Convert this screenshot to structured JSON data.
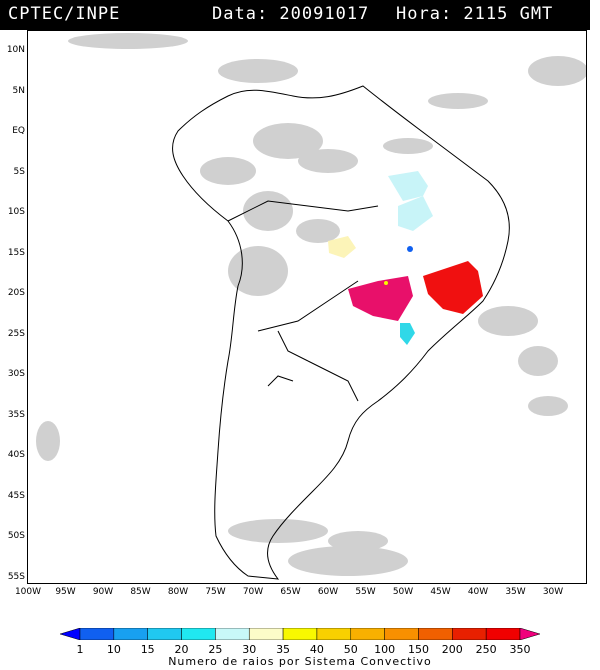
{
  "header": {
    "source": "CPTEC/INPE",
    "date_label": "Data: 20091017",
    "time_label": "Hora: 2115 GMT"
  },
  "map": {
    "lat_labels": [
      "10N",
      "5N",
      "EQ",
      "5S",
      "10S",
      "15S",
      "20S",
      "25S",
      "30S",
      "35S",
      "40S",
      "45S",
      "50S",
      "55S"
    ],
    "lon_labels": [
      "100W",
      "95W",
      "90W",
      "85W",
      "80W",
      "75W",
      "70W",
      "65W",
      "60W",
      "55W",
      "50W",
      "45W",
      "40W",
      "35W",
      "30W"
    ],
    "lightning_regions": [
      {
        "name": "cyan-area-east-brazil",
        "color": "#c8f4f8"
      },
      {
        "name": "yellow-area-mato-grosso",
        "color": "#fcf4b8"
      },
      {
        "name": "magenta-area-parana",
        "color": "#e8106a"
      },
      {
        "name": "red-area-minas",
        "color": "#f01010"
      },
      {
        "name": "cyan-area-santa-catarina",
        "color": "#30d8e8"
      }
    ]
  },
  "colorbar": {
    "labels": [
      "1",
      "10",
      "15",
      "20",
      "25",
      "30",
      "35",
      "40",
      "50",
      "100",
      "150",
      "200",
      "250",
      "350"
    ],
    "colors": [
      "#0000ff",
      "#1060f0",
      "#18a0f0",
      "#20c8f0",
      "#20e8f0",
      "#c8f8f8",
      "#fcfcc8",
      "#f8f800",
      "#f8d000",
      "#f8b000",
      "#f89000",
      "#f06000",
      "#e82000",
      "#f00000",
      "#f0007c"
    ],
    "title": "Numero de raios por Sistema Convectivo"
  }
}
